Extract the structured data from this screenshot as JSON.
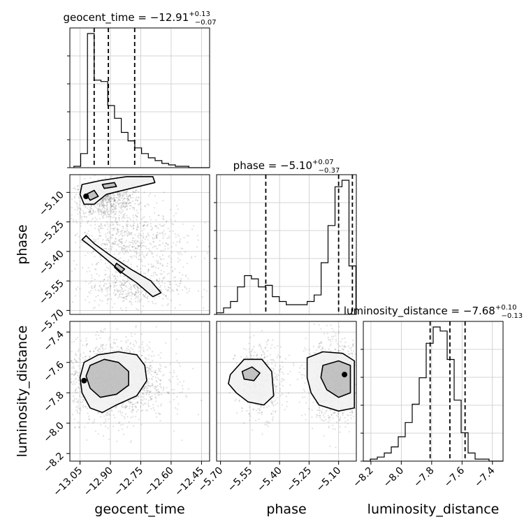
{
  "chart_data": {
    "type": "corner",
    "parameters": [
      "geocent_time",
      "phase",
      "luminosity_distance"
    ],
    "titles": [
      {
        "param": "geocent_time",
        "prefix": "geocent_time = ",
        "median": "−12.91",
        "plus": "+0.13",
        "minus": "−0.07"
      },
      {
        "param": "phase",
        "prefix": "phase = ",
        "median": "−5.10",
        "plus": "+0.07",
        "minus": "−0.37"
      },
      {
        "param": "luminosity_distance",
        "prefix": "luminosity_distance = ",
        "median": "−7.68",
        "plus": "+0.10",
        "minus": "−0.13"
      }
    ],
    "axis_labels": {
      "x": [
        "geocent_time",
        "phase",
        "luminosity_distance"
      ],
      "y_phase": "phase",
      "y_luminosity": "luminosity_distance"
    },
    "ranges": {
      "geocent_time": [
        -13.1,
        -12.41
      ],
      "phase": [
        -5.72,
        -5.01
      ],
      "luminosity_distance": [
        -8.25,
        -7.33
      ]
    },
    "ticks": {
      "geocent_time": {
        "values": [
          -13.05,
          -12.9,
          -12.75,
          -12.6,
          -12.45
        ],
        "labels": [
          "−13.05",
          "−12.90",
          "−12.75",
          "−12.60",
          "−12.45"
        ]
      },
      "phase": {
        "values": [
          -5.7,
          -5.55,
          -5.4,
          -5.25,
          -5.1
        ],
        "labels": [
          "−5.70",
          "−5.55",
          "−5.40",
          "−5.25",
          "−5.10"
        ]
      },
      "phase_y": {
        "values": [
          -5.1,
          -5.25,
          -5.4,
          -5.55,
          -5.7
        ],
        "labels": [
          "−5.10",
          "−5.25",
          "−5.40",
          "−5.55",
          "−5.70"
        ]
      },
      "luminosity_distance": {
        "values": [
          -8.2,
          -8.0,
          -7.8,
          -7.6,
          -7.4
        ],
        "labels": [
          "−8.2",
          "−8.0",
          "−7.8",
          "−7.6",
          "−7.4"
        ]
      }
    },
    "quantiles": {
      "geocent_time": [
        -12.98,
        -12.91,
        -12.78
      ],
      "phase": [
        -5.47,
        -5.1,
        -5.03
      ],
      "luminosity_distance": [
        -7.81,
        -7.68,
        -7.58
      ]
    },
    "histograms": {
      "geocent_time": {
        "edges_start": -13.08,
        "bin_width": 0.0334,
        "counts": [
          1,
          10,
          95,
          62,
          61,
          44,
          35,
          25,
          19,
          14,
          10,
          7,
          5,
          3,
          2,
          1,
          1,
          0,
          0,
          0
        ]
      },
      "phase": {
        "edges_start": -5.72,
        "bin_width": 0.0354,
        "counts": [
          1,
          4,
          8,
          17,
          24,
          22,
          17,
          18,
          11,
          8,
          6,
          6,
          6,
          8,
          12,
          32,
          55,
          79,
          83,
          30
        ]
      },
      "luminosity_distance": {
        "edges_start": -8.25,
        "bin_width": 0.046,
        "counts": [
          0,
          1,
          2,
          4,
          7,
          12,
          19,
          28,
          41,
          58,
          66,
          64,
          50,
          30,
          14,
          4,
          1,
          1,
          0,
          0
        ]
      }
    },
    "scatter_clusters": [
      {
        "panel": "geocent_time-phase",
        "center": [
          -12.92,
          -5.14
        ],
        "spread": [
          0.09,
          0.05
        ],
        "n": 700
      },
      {
        "panel": "geocent_time-phase",
        "center": [
          -12.8,
          -5.35
        ],
        "spread": [
          0.14,
          0.08
        ],
        "n": 600
      },
      {
        "panel": "geocent_time-phase",
        "center": [
          -12.78,
          -5.58
        ],
        "spread": [
          0.12,
          0.05
        ],
        "n": 500
      },
      {
        "panel": "geocent_time-luminosity_distance",
        "center": [
          -12.88,
          -7.72
        ],
        "spread": [
          0.13,
          0.13
        ],
        "n": 1600
      },
      {
        "panel": "phase-luminosity_distance",
        "center": [
          -5.5,
          -7.72
        ],
        "spread": [
          0.06,
          0.12
        ],
        "n": 500
      },
      {
        "panel": "phase-luminosity_distance",
        "center": [
          -5.12,
          -7.72
        ],
        "spread": [
          0.07,
          0.13
        ],
        "n": 1100
      }
    ],
    "contours": {
      "geocent_time-phase": [
        [
          [
            -13.04,
            -5.06
          ],
          [
            -12.95,
            -5.04
          ],
          [
            -12.82,
            -5.02
          ],
          [
            -12.69,
            -5.02
          ],
          [
            -12.68,
            -5.05
          ],
          [
            -12.8,
            -5.08
          ],
          [
            -12.92,
            -5.11
          ],
          [
            -12.98,
            -5.16
          ],
          [
            -13.03,
            -5.16
          ],
          [
            -13.05,
            -5.11
          ]
        ],
        [
          [
            -13.04,
            -5.34
          ],
          [
            -12.99,
            -5.38
          ],
          [
            -12.92,
            -5.44
          ],
          [
            -12.84,
            -5.51
          ],
          [
            -12.77,
            -5.56
          ],
          [
            -12.69,
            -5.63
          ],
          [
            -12.65,
            -5.61
          ],
          [
            -12.7,
            -5.55
          ],
          [
            -12.8,
            -5.49
          ],
          [
            -12.9,
            -5.42
          ],
          [
            -12.98,
            -5.36
          ],
          [
            -13.02,
            -5.32
          ]
        ],
        [
          [
            -13.02,
            -5.11
          ],
          [
            -12.98,
            -5.09
          ],
          [
            -12.96,
            -5.12
          ],
          [
            -13.0,
            -5.14
          ]
        ],
        [
          [
            -12.94,
            -5.06
          ],
          [
            -12.88,
            -5.05
          ],
          [
            -12.87,
            -5.07
          ],
          [
            -12.93,
            -5.08
          ]
        ],
        [
          [
            -12.87,
            -5.46
          ],
          [
            -12.83,
            -5.49
          ],
          [
            -12.85,
            -5.51
          ],
          [
            -12.88,
            -5.48
          ]
        ]
      ],
      "geocent_time-luminosity_distance": [
        [
          [
            -13.03,
            -7.6
          ],
          [
            -12.96,
            -7.55
          ],
          [
            -12.86,
            -7.53
          ],
          [
            -12.77,
            -7.55
          ],
          [
            -12.73,
            -7.62
          ],
          [
            -12.72,
            -7.72
          ],
          [
            -12.77,
            -7.82
          ],
          [
            -12.87,
            -7.88
          ],
          [
            -12.94,
            -7.93
          ],
          [
            -13.0,
            -7.9
          ],
          [
            -13.04,
            -7.8
          ],
          [
            -13.05,
            -7.7
          ]
        ],
        [
          [
            -13.0,
            -7.62
          ],
          [
            -12.93,
            -7.58
          ],
          [
            -12.86,
            -7.6
          ],
          [
            -12.81,
            -7.66
          ],
          [
            -12.81,
            -7.75
          ],
          [
            -12.87,
            -7.81
          ],
          [
            -12.95,
            -7.83
          ],
          [
            -13.0,
            -7.77
          ],
          [
            -13.02,
            -7.69
          ]
        ]
      ],
      "phase-luminosity_distance": [
        [
          [
            -5.65,
            -7.68
          ],
          [
            -5.58,
            -7.58
          ],
          [
            -5.49,
            -7.58
          ],
          [
            -5.44,
            -7.66
          ],
          [
            -5.43,
            -7.82
          ],
          [
            -5.48,
            -7.88
          ],
          [
            -5.56,
            -7.86
          ],
          [
            -5.62,
            -7.8
          ],
          [
            -5.66,
            -7.74
          ]
        ],
        [
          [
            -5.26,
            -7.57
          ],
          [
            -5.18,
            -7.53
          ],
          [
            -5.08,
            -7.54
          ],
          [
            -5.02,
            -7.59
          ],
          [
            -5.02,
            -7.9
          ],
          [
            -5.1,
            -7.92
          ],
          [
            -5.2,
            -7.88
          ],
          [
            -5.24,
            -7.8
          ],
          [
            -5.26,
            -7.7
          ]
        ],
        [
          [
            -5.18,
            -7.62
          ],
          [
            -5.1,
            -7.59
          ],
          [
            -5.04,
            -7.62
          ],
          [
            -5.04,
            -7.8
          ],
          [
            -5.1,
            -7.83
          ],
          [
            -5.16,
            -7.78
          ],
          [
            -5.19,
            -7.7
          ]
        ],
        [
          [
            -5.59,
            -7.66
          ],
          [
            -5.54,
            -7.63
          ],
          [
            -5.5,
            -7.67
          ],
          [
            -5.53,
            -7.72
          ],
          [
            -5.58,
            -7.71
          ]
        ]
      ]
    },
    "grid": true,
    "legend": "none"
  }
}
